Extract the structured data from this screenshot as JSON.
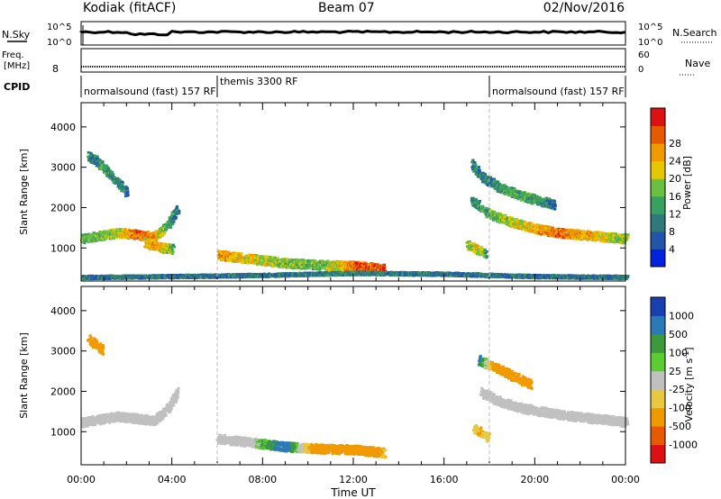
{
  "header": {
    "radar": "Kodiak (fitACF)",
    "beam": "Beam 07",
    "date": "02/Nov/2016"
  },
  "top_panels": {
    "nsky": {
      "label": "N.Sky",
      "ticks": [
        "10^5",
        "10^0"
      ],
      "right_label": "N.Search",
      "right_ticks": [
        "10^5",
        "10^0"
      ]
    },
    "freq": {
      "label_lines": [
        "Freq.",
        "[MHz]"
      ],
      "ticks": [
        "8"
      ],
      "right_label": "Nave",
      "right_ticks": [
        "60",
        "0"
      ]
    },
    "cpid": {
      "label": "CPID",
      "segments": [
        {
          "name": "normalsound (fast) 157 RF",
          "start_hour": 0,
          "end_hour": 6
        },
        {
          "name": "themis 3300 RF",
          "start_hour": 6,
          "end_hour": 18
        },
        {
          "name": "normalsound (fast) 157 RF",
          "start_hour": 18,
          "end_hour": 24
        }
      ]
    }
  },
  "xaxis": {
    "label": "Time UT",
    "tick_labels": [
      "00:00",
      "04:00",
      "08:00",
      "12:00",
      "16:00",
      "20:00",
      "00:00"
    ]
  },
  "chart_data": [
    {
      "type": "heatmap",
      "title": "Power",
      "xlabel": "Time UT",
      "ylabel": "Slant Range [km]",
      "xlim": [
        0,
        24
      ],
      "ylim": [
        180,
        4600
      ],
      "y_tick_labels": [
        "1000",
        "2000",
        "3000",
        "4000"
      ],
      "colorbar": {
        "label": "Power [dB]",
        "tick_labels": [
          "4",
          "8",
          "12",
          "16",
          "20",
          "24",
          "28"
        ],
        "colors": [
          "#0022dd",
          "#2255aa",
          "#2e7a7a",
          "#3aa060",
          "#6cc040",
          "#e6c800",
          "#f09a00",
          "#e85a00",
          "#dd1111"
        ]
      },
      "features": [
        {
          "desc": "morning band",
          "x": [
            0.0,
            0.8,
            1.6,
            2.4,
            3.2,
            3.8,
            4.2
          ],
          "y": [
            1250,
            1330,
            1400,
            1350,
            1300,
            1600,
            2000
          ],
          "level": [
            14,
            16,
            18,
            26,
            22,
            12,
            8
          ]
        },
        {
          "desc": "morning lower",
          "x": [
            2.8,
            3.2,
            3.6,
            4.0
          ],
          "y": [
            1150,
            1080,
            1020,
            1000
          ],
          "level": [
            20,
            24,
            20,
            14
          ]
        },
        {
          "desc": "morning upper",
          "x": [
            0.3,
            0.6,
            0.9,
            1.5,
            2.0
          ],
          "y": [
            3300,
            3200,
            3050,
            2700,
            2400
          ],
          "level": [
            10,
            8,
            12,
            10,
            8
          ]
        },
        {
          "desc": "near range",
          "x": [
            6.0,
            7.5,
            9.0,
            10.5,
            12.0,
            13.3
          ],
          "y": [
            850,
            750,
            650,
            600,
            580,
            500
          ],
          "level": [
            22,
            20,
            16,
            14,
            26,
            28
          ]
        },
        {
          "desc": "ground scatter floor",
          "x": [
            0,
            4,
            8,
            12,
            16,
            20,
            24
          ],
          "y": [
            300,
            320,
            350,
            400,
            380,
            320,
            300
          ],
          "level": [
            8,
            8,
            8,
            10,
            8,
            8,
            8
          ]
        },
        {
          "desc": "evening band",
          "x": [
            17.2,
            18.0,
            19.0,
            20.0,
            21.0,
            22.0,
            23.0,
            24.0
          ],
          "y": [
            2200,
            1850,
            1650,
            1500,
            1400,
            1350,
            1300,
            1250
          ],
          "level": [
            10,
            14,
            18,
            22,
            26,
            22,
            20,
            16
          ]
        },
        {
          "desc": "evening upper",
          "x": [
            17.2,
            17.6,
            18.5,
            19.5,
            20.8
          ],
          "y": [
            3100,
            2800,
            2500,
            2300,
            2100
          ],
          "level": [
            10,
            8,
            12,
            14,
            8
          ]
        },
        {
          "desc": "evening near",
          "x": [
            17.0,
            17.4,
            17.8
          ],
          "y": [
            1100,
            1000,
            900
          ],
          "level": [
            16,
            20,
            14
          ]
        }
      ]
    },
    {
      "type": "heatmap",
      "title": "Velocity",
      "xlabel": "Time UT",
      "ylabel": "Slant Range [km]",
      "xlim": [
        0,
        24
      ],
      "ylim": [
        180,
        4600
      ],
      "y_tick_labels": [
        "1000",
        "2000",
        "3000",
        "4000"
      ],
      "colorbar": {
        "label": "Velocity [m s^-1]",
        "tick_labels": [
          "1000",
          "500",
          "100",
          "25",
          "-25",
          "-100",
          "-500",
          "-1000"
        ],
        "colors": [
          "#1a3fb0",
          "#2a7ab8",
          "#3c9a3c",
          "#5ccc33",
          "#c0c0c0",
          "#e8c840",
          "#f09a00",
          "#e85a00",
          "#dd1111"
        ]
      },
      "features": [
        {
          "desc": "ground scatter morning",
          "x": [
            0.0,
            0.8,
            1.6,
            2.4,
            3.2,
            3.8,
            4.2
          ],
          "y": [
            1250,
            1330,
            1400,
            1350,
            1300,
            1600,
            2000
          ],
          "value": [
            0,
            0,
            0,
            0,
            0,
            0,
            0
          ]
        },
        {
          "desc": "morning upper",
          "x": [
            0.3,
            0.6,
            0.9
          ],
          "y": [
            3300,
            3200,
            3050
          ],
          "value": [
            -400,
            -300,
            -200
          ]
        },
        {
          "desc": "near range",
          "x": [
            6.0,
            7.5,
            9.0,
            10.5,
            12.0,
            13.3
          ],
          "y": [
            850,
            750,
            650,
            600,
            580,
            500
          ],
          "value": [
            0,
            0,
            150,
            -200,
            -300,
            -100
          ]
        },
        {
          "desc": "evening gs",
          "x": [
            17.6,
            18.5,
            19.5,
            20.5,
            21.5,
            22.5,
            23.5,
            24.0
          ],
          "y": [
            2000,
            1750,
            1600,
            1500,
            1420,
            1350,
            1300,
            1250
          ],
          "value": [
            0,
            0,
            0,
            0,
            0,
            0,
            0,
            0
          ]
        },
        {
          "desc": "evening upper",
          "x": [
            17.5,
            18.3,
            19.0,
            19.8
          ],
          "y": [
            2800,
            2600,
            2400,
            2200
          ],
          "value": [
            150,
            -200,
            -300,
            -250
          ]
        },
        {
          "desc": "evening near",
          "x": [
            17.3,
            17.6,
            17.9
          ],
          "y": [
            1100,
            1000,
            900
          ],
          "value": [
            -80,
            -100,
            -60
          ]
        }
      ]
    }
  ]
}
